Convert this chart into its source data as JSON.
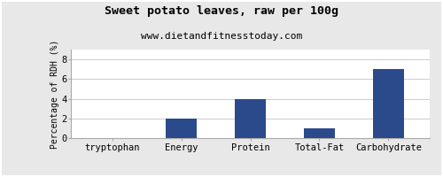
{
  "title": "Sweet potato leaves, raw per 100g",
  "subtitle": "www.dietandfitnesstoday.com",
  "categories": [
    "tryptophan",
    "Energy",
    "Protein",
    "Total-Fat",
    "Carbohydrate"
  ],
  "values": [
    0,
    2,
    4,
    1,
    7
  ],
  "bar_color": "#2b4a8b",
  "ylabel": "Percentage of RDH (%)",
  "ylim": [
    0,
    9
  ],
  "yticks": [
    0,
    2,
    4,
    6,
    8
  ],
  "background_color": "#e8e8e8",
  "plot_bg_color": "#ffffff",
  "title_fontsize": 9.5,
  "subtitle_fontsize": 8,
  "ylabel_fontsize": 7,
  "tick_fontsize": 7.5,
  "bar_width": 0.45
}
